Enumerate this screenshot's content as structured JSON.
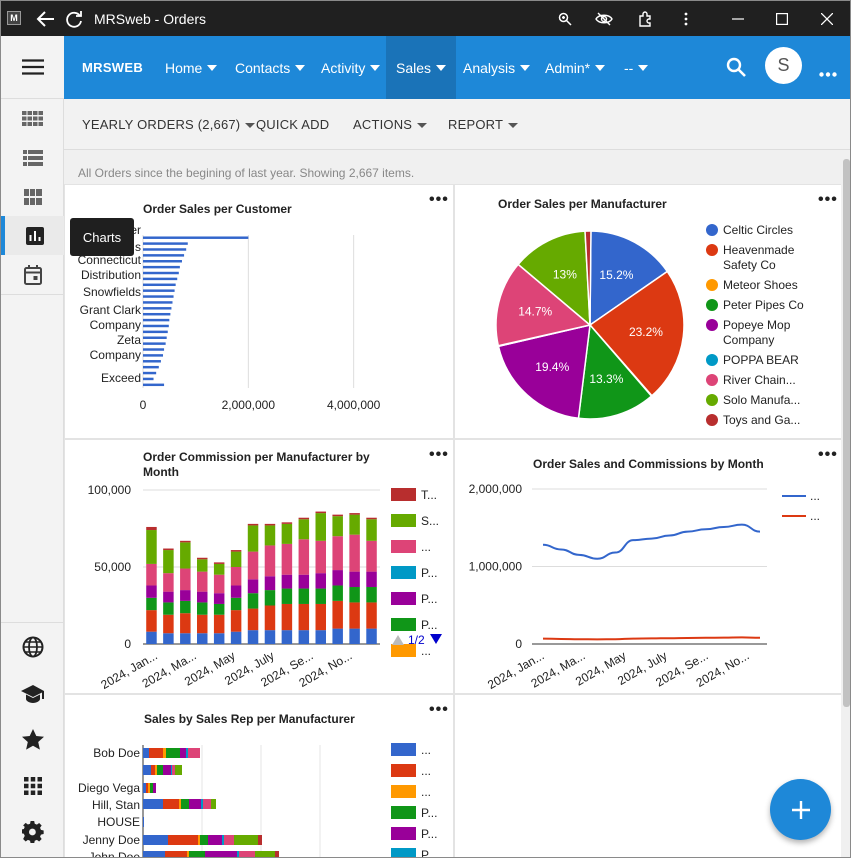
{
  "window": {
    "title": "MRSweb - Orders",
    "app_icon": "M"
  },
  "nav": {
    "brand": "MRSWEB",
    "items": [
      {
        "label": "Home"
      },
      {
        "label": "Contacts"
      },
      {
        "label": "Activity"
      },
      {
        "label": "Sales"
      },
      {
        "label": "Analysis"
      },
      {
        "label": "Admin*"
      },
      {
        "label": "--"
      }
    ],
    "active": "Sales",
    "avatar": "S"
  },
  "sidebar": {
    "tooltip": "Charts"
  },
  "toolbar": {
    "yearly": "YEARLY ORDERS (2,667)",
    "quick_add": "QUICK ADD",
    "actions": "ACTIONS",
    "report": "REPORT"
  },
  "info_text": "All Orders since the begining of last year. Showing 2,667 items.",
  "colors": {
    "accent": "#1e88d8",
    "blue": "#3366cc",
    "red": "#dc3912",
    "orange": "#ff9900",
    "green": "#109618",
    "purple": "#990099",
    "teal": "#0099c6",
    "pink": "#dd4477",
    "lime": "#66aa00",
    "darkred": "#b82e2e"
  },
  "chart_data": [
    {
      "type": "bar",
      "title": "Order Sales per Customer",
      "orientation": "horizontal",
      "visible_category_labels": [
        "er",
        "s",
        "Connecticut",
        "Distribution",
        "Snowfields",
        "Grant Clark",
        "Company",
        "Zeta",
        "Company",
        "Exceed"
      ],
      "values": [
        2000000,
        850000,
        820000,
        780000,
        740000,
        700000,
        680000,
        650000,
        620000,
        600000,
        580000,
        560000,
        540000,
        520000,
        500000,
        490000,
        470000,
        450000,
        430000,
        400000,
        380000,
        340000,
        300000,
        250000,
        200000,
        400000
      ],
      "x_ticks": [
        "0",
        "2,000,000",
        "4,000,000"
      ],
      "xlim": [
        0,
        4500000
      ]
    },
    {
      "type": "pie",
      "title": "Order Sales per Manufacturer",
      "slices": [
        {
          "label": "Celtic Circles",
          "value": 15.2,
          "text": "15.2%",
          "color": "#3366cc"
        },
        {
          "label": "Heavenmade Safety Co",
          "value": 23.2,
          "text": "23.2%",
          "color": "#dc3912"
        },
        {
          "label": "Meteor Shoes",
          "value": 0.1,
          "text": "",
          "color": "#ff9900"
        },
        {
          "label": "Peter Pipes Co",
          "value": 13.3,
          "text": "13.3%",
          "color": "#109618"
        },
        {
          "label": "Popeye Mop Company",
          "value": 19.4,
          "text": "19.4%",
          "color": "#990099"
        },
        {
          "label": "POPPA BEAR",
          "value": 0.1,
          "text": "",
          "color": "#0099c6"
        },
        {
          "label": "River Chain...",
          "value": 14.7,
          "text": "14.7%",
          "color": "#dd4477"
        },
        {
          "label": "Solo Manufa...",
          "value": 13.0,
          "text": "13%",
          "color": "#66aa00"
        },
        {
          "label": "Toys and Ga...",
          "value": 1.0,
          "text": "",
          "color": "#b82e2e"
        }
      ],
      "legend": [
        {
          "lines": [
            "Celtic Circles"
          ],
          "color": "#3366cc"
        },
        {
          "lines": [
            "Heavenmade",
            "Safety Co"
          ],
          "color": "#dc3912"
        },
        {
          "lines": [
            "Meteor Shoes"
          ],
          "color": "#ff9900"
        },
        {
          "lines": [
            "Peter Pipes Co"
          ],
          "color": "#109618"
        },
        {
          "lines": [
            "Popeye Mop",
            "Company"
          ],
          "color": "#990099"
        },
        {
          "lines": [
            "POPPA BEAR"
          ],
          "color": "#0099c6"
        },
        {
          "lines": [
            "River Chain..."
          ],
          "color": "#dd4477"
        },
        {
          "lines": [
            "Solo Manufa..."
          ],
          "color": "#66aa00"
        },
        {
          "lines": [
            "Toys and Ga..."
          ],
          "color": "#b82e2e"
        }
      ]
    },
    {
      "type": "bar",
      "stacked": true,
      "title_lines": [
        "Order Commission per Manufacturer by",
        "Month"
      ],
      "x_labels": [
        "2024, Jan...",
        "2024, Ma...",
        "2024, May",
        "2024, July",
        "2024, Se...",
        "2024, No..."
      ],
      "y_ticks": [
        "100,000",
        "50,000",
        "0"
      ],
      "ylim": [
        0,
        100000
      ],
      "series_colors": [
        "#3366cc",
        "#dc3912",
        "#109618",
        "#990099",
        "#dd4477",
        "#66aa00",
        "#b82e2e"
      ],
      "stacks": [
        [
          8000,
          14000,
          8000,
          8000,
          14000,
          22000,
          2000
        ],
        [
          7000,
          12000,
          8000,
          7000,
          12000,
          15000,
          1000
        ],
        [
          7000,
          13000,
          8000,
          7000,
          14000,
          17000,
          1000
        ],
        [
          7000,
          12000,
          8000,
          7000,
          13000,
          8000,
          1000
        ],
        [
          7000,
          12000,
          7000,
          7000,
          12000,
          7000,
          1000
        ],
        [
          8000,
          14000,
          8000,
          8000,
          12000,
          10000,
          1000
        ],
        [
          9000,
          14000,
          10000,
          9000,
          18000,
          17000,
          1000
        ],
        [
          9000,
          16000,
          10000,
          9000,
          20000,
          13000,
          1000
        ],
        [
          9000,
          17000,
          10000,
          9000,
          20000,
          13000,
          1000
        ],
        [
          9000,
          17000,
          10000,
          9000,
          23000,
          13000,
          1000
        ],
        [
          9000,
          17000,
          10000,
          10000,
          21000,
          18000,
          1000
        ],
        [
          10000,
          18000,
          10000,
          10000,
          22000,
          13000,
          1000
        ],
        [
          10000,
          17000,
          10000,
          10000,
          24000,
          13000,
          1000
        ],
        [
          10000,
          17000,
          10000,
          10000,
          20000,
          14000,
          1000
        ]
      ],
      "legend": [
        {
          "label": "T...",
          "color": "#b82e2e"
        },
        {
          "label": "S...",
          "color": "#66aa00"
        },
        {
          "label": "...",
          "color": "#dd4477"
        },
        {
          "label": "P...",
          "color": "#0099c6"
        },
        {
          "label": "P...",
          "color": "#990099"
        },
        {
          "label": "P...",
          "color": "#109618"
        },
        {
          "label": "...",
          "color": "#ff9900"
        }
      ],
      "pager": "1/2"
    },
    {
      "type": "line",
      "title": "Order Sales and Commissions by Month",
      "y_ticks": [
        "2,000,000",
        "1,000,000",
        "0"
      ],
      "ylim": [
        0,
        2000000
      ],
      "x_labels": [
        "2024, Jan...",
        "2024, Ma...",
        "2024, May",
        "2024, July",
        "2024, Se...",
        "2024, No..."
      ],
      "series": [
        {
          "name": "...",
          "color": "#3366cc",
          "values": [
            1280000,
            1220000,
            1150000,
            1100000,
            1180000,
            1340000,
            1360000,
            1400000,
            1450000,
            1480000,
            1510000,
            1540000,
            1450000
          ]
        },
        {
          "name": "...",
          "color": "#dc3912",
          "values": [
            70000,
            65000,
            62000,
            60000,
            62000,
            70000,
            72000,
            75000,
            78000,
            80000,
            82000,
            85000,
            80000
          ]
        }
      ]
    },
    {
      "type": "bar",
      "stacked": true,
      "orientation": "horizontal",
      "title": "Sales by Sales Rep per Manufacturer",
      "visible_category_labels": [
        "Bob Doe",
        "Diego Vega",
        "Hill, Stan",
        "HOUSE",
        "Jenny Doe",
        "John Doe"
      ],
      "series_colors": [
        "#3366cc",
        "#dc3912",
        "#ff9900",
        "#109618",
        "#990099",
        "#0099c6",
        "#dd4477",
        "#66aa00",
        "#b82e2e"
      ],
      "legend": [
        {
          "label": "...",
          "color": "#3366cc"
        },
        {
          "label": "...",
          "color": "#dc3912"
        },
        {
          "label": "...",
          "color": "#ff9900"
        },
        {
          "label": "P...",
          "color": "#109618"
        },
        {
          "label": "P...",
          "color": "#990099"
        },
        {
          "label": "P...",
          "color": "#0099c6"
        }
      ]
    }
  ]
}
